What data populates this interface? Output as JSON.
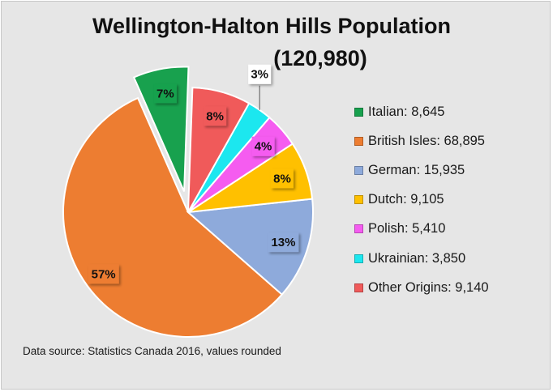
{
  "chart_data": {
    "type": "pie",
    "title_line1": "Wellington-Halton Hills Population",
    "title_line2": "(120,980)",
    "categories": [
      "Italian",
      "British Isles",
      "German",
      "Dutch",
      "Polish",
      "Ukrainian",
      "Other Origins"
    ],
    "values": [
      8645,
      68895,
      15935,
      9105,
      5410,
      3850,
      9140
    ],
    "percent_labels": [
      "7%",
      "57%",
      "13%",
      "8%",
      "4%",
      "3%",
      "8%"
    ],
    "legend_labels": [
      "Italian: 8,645",
      "British Isles: 68,895",
      "German: 15,935",
      "Dutch: 9,105",
      "Polish: 5,410",
      "Ukrainian: 3,850",
      "Other Origins: 9,140"
    ],
    "colors": [
      "#18a14e",
      "#ed7d31",
      "#8eaadb",
      "#ffc000",
      "#f55cf0",
      "#1ce7ef",
      "#f05a5a"
    ],
    "exploded": [
      "Italian"
    ],
    "legend_position": "right",
    "source_note": "Data source: Statistics Canada 2016, values rounded"
  }
}
